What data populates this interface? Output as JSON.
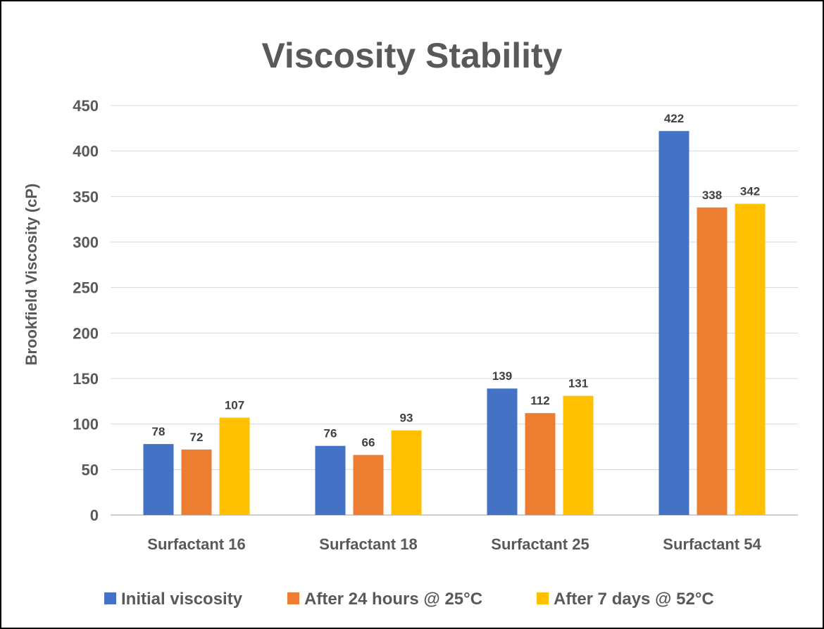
{
  "chart_data": {
    "type": "bar",
    "title": "Viscosity Stability",
    "xlabel": "",
    "ylabel": "Brookfield Viscosity (cP)",
    "ylim": [
      0,
      450
    ],
    "yticks": [
      0,
      50,
      100,
      150,
      200,
      250,
      300,
      350,
      400,
      450
    ],
    "grid": true,
    "legend_position": "bottom",
    "categories": [
      "Surfactant 16",
      "Surfactant 18",
      "Surfactant 25",
      "Surfactant 54"
    ],
    "series": [
      {
        "name": "Initial viscosity",
        "color": "#4472C4",
        "values": [
          78,
          76,
          139,
          422
        ]
      },
      {
        "name": "After 24 hours @ 25°C",
        "color": "#ED7D31",
        "values": [
          72,
          66,
          112,
          338
        ]
      },
      {
        "name": "After 7 days @ 52°C",
        "color": "#FFC000",
        "values": [
          107,
          93,
          131,
          342
        ]
      }
    ]
  }
}
